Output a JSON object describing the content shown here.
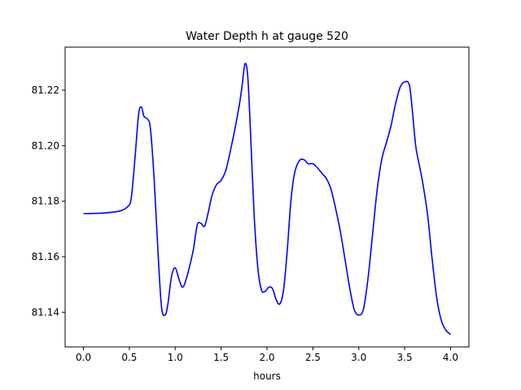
{
  "chart_data": {
    "type": "line",
    "title": "Water Depth h at gauge 520",
    "xlabel": "hours",
    "ylabel": "",
    "xlim": [
      -0.2,
      4.2
    ],
    "ylim": [
      81.1275,
      81.2355
    ],
    "xticks": [
      0.0,
      0.5,
      1.0,
      1.5,
      2.0,
      2.5,
      3.0,
      3.5,
      4.0
    ],
    "xtick_labels": [
      "0.0",
      "0.5",
      "1.0",
      "1.5",
      "2.0",
      "2.5",
      "3.0",
      "3.5",
      "4.0"
    ],
    "yticks": [
      81.14,
      81.16,
      81.18,
      81.2,
      81.22
    ],
    "ytick_labels": [
      "81.14",
      "81.16",
      "81.18",
      "81.20",
      "81.22"
    ],
    "grid": false,
    "legend": null,
    "series": [
      {
        "color": "#0000ff",
        "x": [
          0.0,
          0.1,
          0.25,
          0.4,
          0.48,
          0.52,
          0.56,
          0.6,
          0.63,
          0.66,
          0.7,
          0.73,
          0.77,
          0.81,
          0.85,
          0.89,
          0.92,
          0.96,
          1.0,
          1.04,
          1.08,
          1.12,
          1.16,
          1.2,
          1.24,
          1.28,
          1.32,
          1.36,
          1.4,
          1.45,
          1.5,
          1.55,
          1.6,
          1.65,
          1.7,
          1.73,
          1.76,
          1.79,
          1.82,
          1.86,
          1.9,
          1.94,
          1.98,
          2.02,
          2.06,
          2.1,
          2.14,
          2.18,
          2.22,
          2.26,
          2.3,
          2.35,
          2.4,
          2.45,
          2.5,
          2.55,
          2.6,
          2.65,
          2.7,
          2.75,
          2.8,
          2.85,
          2.9,
          2.95,
          3.0,
          3.05,
          3.1,
          3.15,
          3.2,
          3.25,
          3.3,
          3.35,
          3.4,
          3.45,
          3.5,
          3.55,
          3.58,
          3.62,
          3.66,
          3.7,
          3.75,
          3.8,
          3.85,
          3.9,
          3.95,
          4.0
        ],
        "y": [
          81.1755,
          81.1756,
          81.1758,
          81.1765,
          81.178,
          81.181,
          81.195,
          81.211,
          81.214,
          81.2105,
          81.2095,
          81.206,
          81.188,
          81.163,
          81.142,
          81.139,
          81.143,
          81.153,
          81.156,
          81.152,
          81.149,
          81.152,
          81.157,
          81.163,
          81.1715,
          81.172,
          81.171,
          81.176,
          81.182,
          81.186,
          81.1875,
          81.191,
          81.198,
          81.206,
          81.215,
          81.222,
          81.2295,
          81.225,
          81.205,
          81.175,
          81.156,
          81.148,
          81.1475,
          81.149,
          81.1485,
          81.1445,
          81.143,
          81.148,
          81.162,
          81.18,
          81.19,
          81.1945,
          81.195,
          81.1935,
          81.1935,
          81.192,
          81.19,
          81.188,
          81.184,
          81.177,
          81.169,
          81.159,
          81.149,
          81.141,
          81.139,
          81.141,
          81.152,
          81.168,
          81.184,
          81.195,
          81.201,
          81.207,
          81.215,
          81.221,
          81.223,
          81.222,
          81.214,
          81.2,
          81.193,
          81.186,
          81.175,
          81.159,
          81.145,
          81.137,
          81.1335,
          81.132
        ]
      }
    ]
  }
}
